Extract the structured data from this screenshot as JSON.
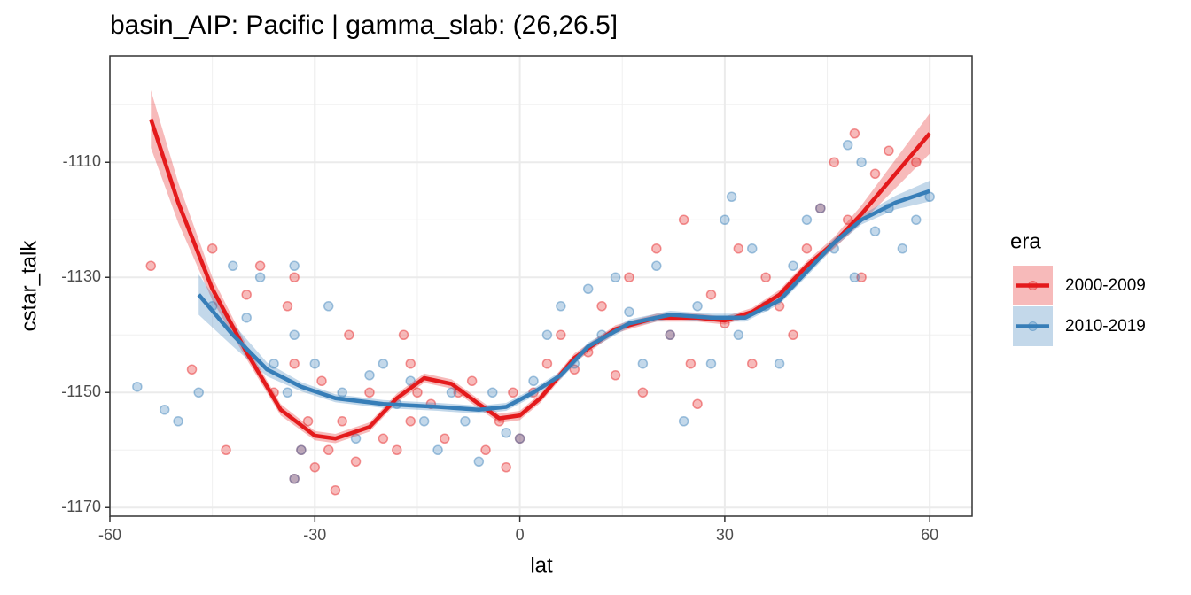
{
  "chart_data": {
    "type": "scatter",
    "title": "basin_AIP: Pacific | gamma_slab:  (26,26.5]",
    "xlabel": "lat",
    "ylabel": "cstar_talk",
    "legend_title": "era",
    "legend_position": "right",
    "xlim": [
      -60,
      66.2
    ],
    "ylim": [
      -1171.5,
      -1091.5
    ],
    "xticks": [
      -60,
      -30,
      0,
      30,
      60
    ],
    "yticks": [
      -1110,
      -1130,
      -1150,
      -1170
    ],
    "grid": true,
    "minor_grid": true,
    "series": [
      {
        "name": "2000-2009",
        "color": "#e41a1c",
        "x": [
          -54,
          -48,
          -45,
          -43,
          -40,
          -38,
          -36,
          -34,
          -33,
          -33,
          -33,
          -32,
          -31,
          -30,
          -29,
          -28,
          -27,
          -26,
          -25,
          -24,
          -22,
          -20,
          -18,
          -17,
          -16,
          -16,
          -15,
          -13,
          -11,
          -9,
          -7,
          -5,
          -3,
          -2,
          -1,
          0,
          2,
          4,
          6,
          8,
          10,
          12,
          14,
          16,
          18,
          20,
          22,
          24,
          25,
          26,
          28,
          30,
          32,
          34,
          36,
          38,
          40,
          42,
          44,
          46,
          48,
          49,
          50,
          52,
          54,
          58
        ],
        "values": [
          -1128,
          -1146,
          -1125,
          -1160,
          -1133,
          -1128,
          -1150,
          -1135,
          -1165,
          -1130,
          -1145,
          -1160,
          -1155,
          -1163,
          -1148,
          -1160,
          -1167,
          -1155,
          -1140,
          -1162,
          -1150,
          -1158,
          -1160,
          -1140,
          -1145,
          -1155,
          -1150,
          -1152,
          -1158,
          -1150,
          -1148,
          -1160,
          -1155,
          -1163,
          -1150,
          -1158,
          -1150,
          -1145,
          -1140,
          -1146,
          -1143,
          -1135,
          -1147,
          -1130,
          -1150,
          -1125,
          -1140,
          -1120,
          -1145,
          -1152,
          -1133,
          -1138,
          -1125,
          -1145,
          -1130,
          -1135,
          -1140,
          -1125,
          -1118,
          -1110,
          -1120,
          -1105,
          -1130,
          -1112,
          -1108,
          -1110
        ],
        "smooth_x": [
          -54,
          -50,
          -45,
          -40,
          -35,
          -30,
          -27,
          -22,
          -18,
          -14,
          -10,
          -6,
          -3,
          0,
          3,
          8,
          14,
          20,
          26,
          30,
          34,
          38,
          42,
          46,
          50,
          55,
          60
        ],
        "smooth": [
          -1102.5,
          -1117,
          -1132,
          -1143,
          -1153,
          -1157.5,
          -1158,
          -1156,
          -1151,
          -1147.5,
          -1148.5,
          -1152,
          -1154.5,
          -1154,
          -1151,
          -1144,
          -1139,
          -1137,
          -1137,
          -1137.5,
          -1136,
          -1133,
          -1128,
          -1124,
          -1119,
          -1112,
          -1105
        ],
        "smooth_lower": [
          -1107.5,
          -1120.5,
          -1134,
          -1144.2,
          -1154,
          -1158.3,
          -1158.8,
          -1156.8,
          -1151.8,
          -1148.3,
          -1149.3,
          -1152.8,
          -1155.3,
          -1154.8,
          -1151.8,
          -1144.8,
          -1139.7,
          -1137.7,
          -1137.7,
          -1138.2,
          -1136.7,
          -1133.8,
          -1128.8,
          -1125,
          -1120.5,
          -1114.5,
          -1108.5
        ],
        "smooth_upper": [
          -1097.5,
          -1113.5,
          -1130,
          -1141.8,
          -1152,
          -1156.7,
          -1157.2,
          -1155.2,
          -1150.2,
          -1146.7,
          -1147.7,
          -1151.2,
          -1153.7,
          -1153.2,
          -1150.2,
          -1143.2,
          -1138.3,
          -1136.3,
          -1136.3,
          -1136.8,
          -1135.3,
          -1132.2,
          -1127.2,
          -1123,
          -1117.5,
          -1109.5,
          -1101.5
        ]
      },
      {
        "name": "2010-2019",
        "color": "#377eb8",
        "x": [
          -56,
          -52,
          -50,
          -47,
          -45,
          -42,
          -40,
          -38,
          -36,
          -34,
          -33,
          -33,
          -33,
          -32,
          -30,
          -28,
          -26,
          -24,
          -22,
          -20,
          -18,
          -16,
          -14,
          -12,
          -10,
          -8,
          -6,
          -4,
          -2,
          0,
          2,
          4,
          6,
          8,
          10,
          12,
          14,
          16,
          18,
          20,
          22,
          24,
          26,
          28,
          30,
          31,
          32,
          34,
          36,
          38,
          40,
          42,
          44,
          46,
          48,
          49,
          50,
          52,
          54,
          56,
          58,
          60
        ],
        "values": [
          -1149,
          -1153,
          -1155,
          -1150,
          -1135,
          -1128,
          -1137,
          -1130,
          -1145,
          -1150,
          -1128,
          -1140,
          -1165,
          -1160,
          -1145,
          -1135,
          -1150,
          -1158,
          -1147,
          -1145,
          -1152,
          -1148,
          -1155,
          -1160,
          -1150,
          -1155,
          -1162,
          -1150,
          -1157,
          -1158,
          -1148,
          -1140,
          -1135,
          -1145,
          -1132,
          -1140,
          -1130,
          -1136,
          -1145,
          -1128,
          -1140,
          -1155,
          -1135,
          -1145,
          -1120,
          -1116,
          -1140,
          -1125,
          -1135,
          -1145,
          -1128,
          -1120,
          -1118,
          -1125,
          -1107,
          -1130,
          -1110,
          -1122,
          -1118,
          -1125,
          -1120,
          -1116
        ],
        "smooth_x": [
          -47,
          -42,
          -37,
          -32,
          -27,
          -20,
          -12,
          -6,
          -2,
          2,
          6,
          10,
          16,
          22,
          28,
          33,
          38,
          42,
          46,
          50,
          55,
          60
        ],
        "smooth": [
          -1133,
          -1140,
          -1146,
          -1149,
          -1151,
          -1152,
          -1152.5,
          -1153,
          -1152.5,
          -1150,
          -1147,
          -1142,
          -1138,
          -1136.5,
          -1137,
          -1137,
          -1134,
          -1129,
          -1124,
          -1120,
          -1117,
          -1115
        ],
        "smooth_lower": [
          -1136.5,
          -1142,
          -1147.2,
          -1149.8,
          -1151.7,
          -1152.7,
          -1153.2,
          -1153.7,
          -1153.2,
          -1150.7,
          -1147.7,
          -1142.7,
          -1138.7,
          -1137.2,
          -1137.7,
          -1137.7,
          -1134.7,
          -1129.8,
          -1124.8,
          -1120.8,
          -1118.2,
          -1116.8
        ],
        "smooth_upper": [
          -1129.5,
          -1138,
          -1144.8,
          -1148.2,
          -1150.3,
          -1151.3,
          -1151.8,
          -1152.3,
          -1151.8,
          -1149.3,
          -1146.3,
          -1141.3,
          -1137.3,
          -1135.8,
          -1136.3,
          -1136.3,
          -1133.3,
          -1128.2,
          -1123.2,
          -1119.2,
          -1115.8,
          -1113.2
        ]
      }
    ]
  }
}
